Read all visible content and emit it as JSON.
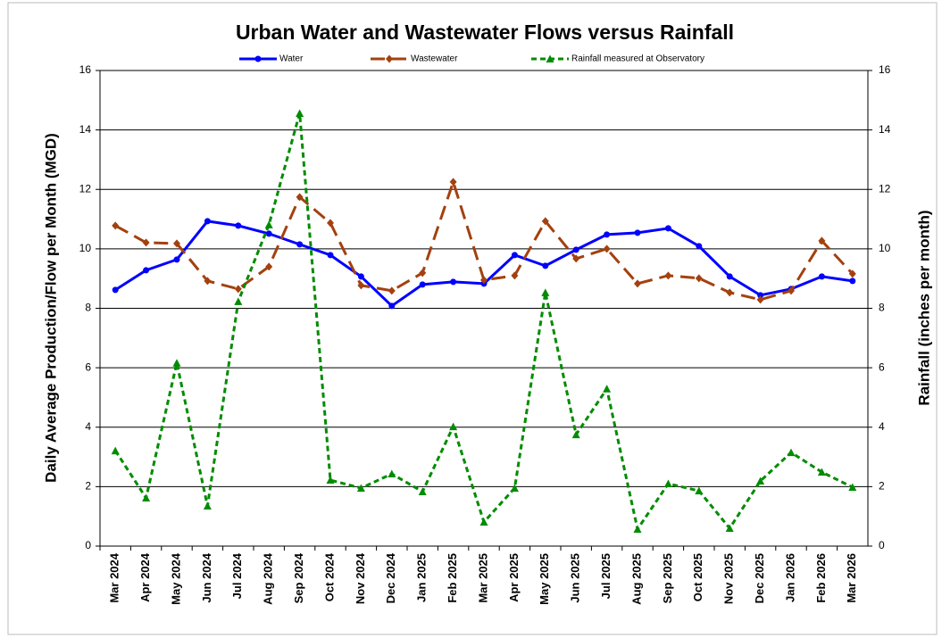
{
  "chart_data": {
    "type": "line",
    "title": "Urban Water and Wastewater Flows versus Rainfall",
    "y_label": "Daily Average Production/Flow per Month (MGD)",
    "y2_label": "Rainfall (inches per month)",
    "categories": [
      "Mar 2024",
      "Apr 2024",
      "May 2024",
      "Jun 2024",
      "Jul 2024",
      "Aug 2024",
      "Sep 2024",
      "Oct 2024",
      "Nov 2024",
      "Dec 2024",
      "Jan 2025",
      "Feb 2025",
      "Mar 2025",
      "Apr 2025",
      "May 2025",
      "Jun 2025",
      "Jul 2025",
      "Aug 2025",
      "Sep 2025",
      "Oct 2025",
      "Nov 2025",
      "Dec 2025",
      "Jan 2026",
      "Feb 2026",
      "Mar 2026"
    ],
    "series": [
      {
        "name": "Water",
        "color": "#0000ff",
        "axis": "y",
        "marker": "circle",
        "dash": "solid",
        "values": [
          8.62,
          9.28,
          9.64,
          10.93,
          10.78,
          10.51,
          10.15,
          9.79,
          9.07,
          8.08,
          8.8,
          8.89,
          8.83,
          9.79,
          9.43,
          9.97,
          10.48,
          10.54,
          10.69,
          10.09,
          9.07,
          8.44,
          8.65,
          9.07,
          8.92
        ]
      },
      {
        "name": "Wastewater",
        "color": "#a3410f",
        "axis": "y",
        "marker": "diamond",
        "dash": "long",
        "values": [
          10.78,
          10.21,
          10.18,
          8.92,
          8.65,
          9.4,
          11.74,
          10.87,
          8.77,
          8.59,
          9.19,
          12.25,
          8.95,
          9.1,
          10.93,
          9.67,
          10.0,
          8.83,
          9.1,
          9.01,
          8.53,
          8.29,
          8.59,
          10.27,
          9.16
        ]
      },
      {
        "name": "Rainfall measured at Observatory",
        "color": "#008c00",
        "axis": "y2",
        "marker": "triangle",
        "dash": "short",
        "values": [
          3.21,
          1.62,
          6.16,
          1.35,
          8.23,
          10.81,
          14.56,
          2.22,
          1.95,
          2.43,
          1.83,
          4.02,
          0.81,
          1.95,
          8.53,
          3.75,
          5.29,
          0.57,
          2.1,
          1.86,
          0.6,
          2.19,
          3.15,
          2.49,
          1.98
        ]
      }
    ],
    "ylim": [
      0,
      16
    ],
    "yticks": [
      0,
      2,
      4,
      6,
      8,
      10,
      12,
      14,
      16
    ],
    "y2lim": [
      0,
      16
    ],
    "y2ticks": [
      0,
      2,
      4,
      6,
      8,
      10,
      12,
      14,
      16
    ],
    "grid": true,
    "legend": "top"
  }
}
